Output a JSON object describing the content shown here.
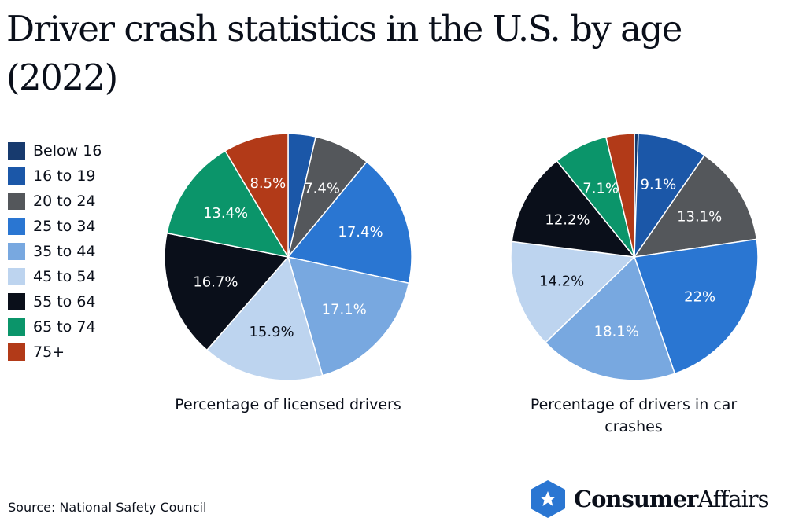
{
  "title": "Driver crash statistics in the U.S. by age (2022)",
  "source": "Source: National Safety Council",
  "logo": {
    "text_bold": "Consumer",
    "text_regular": "Affairs",
    "icon": "star-hexagon-icon",
    "color": "#2a76d2"
  },
  "chart_data": [
    {
      "type": "pie",
      "title": "Percentage of licensed drivers",
      "categories": [
        "Below 16",
        "16 to 19",
        "20 to 24",
        "25 to 34",
        "35 to 44",
        "45 to 54",
        "55 to 64",
        "65 to 74",
        "75+"
      ],
      "values": [
        0,
        3.6,
        7.4,
        17.4,
        17.1,
        15.9,
        16.7,
        13.4,
        8.5
      ],
      "labels": [
        "",
        "",
        "7.4%",
        "17.4%",
        "17.1%",
        "15.9%",
        "16.7%",
        "13.4%",
        "8.5%"
      ],
      "legend": "left"
    },
    {
      "type": "pie",
      "title": "Percentage of drivers in car crashes",
      "categories": [
        "Below 16",
        "16 to 19",
        "20 to 24",
        "25 to 34",
        "35 to 44",
        "45 to 54",
        "55 to 64",
        "65 to 74",
        "75+"
      ],
      "values": [
        0.5,
        9.1,
        13.1,
        22,
        18.1,
        14.2,
        12.2,
        7.1,
        3.7
      ],
      "labels": [
        "",
        "9.1%",
        "13.1%",
        "22%",
        "18.1%",
        "14.2%",
        "12.2%",
        "7.1%",
        ""
      ],
      "legend": "left"
    }
  ],
  "legend": [
    {
      "label": "Below 16",
      "color": "#173a6e"
    },
    {
      "label": "16 to 19",
      "color": "#1b57a8"
    },
    {
      "label": "20 to 24",
      "color": "#54575b"
    },
    {
      "label": "25 to 34",
      "color": "#2a76d2"
    },
    {
      "label": "35 to 44",
      "color": "#78a8e0"
    },
    {
      "label": "45 to 54",
      "color": "#bdd4ef"
    },
    {
      "label": "55 to 64",
      "color": "#0a0f1a"
    },
    {
      "label": "65 to 74",
      "color": "#0b956a"
    },
    {
      "label": "75+",
      "color": "#b23a18"
    }
  ]
}
